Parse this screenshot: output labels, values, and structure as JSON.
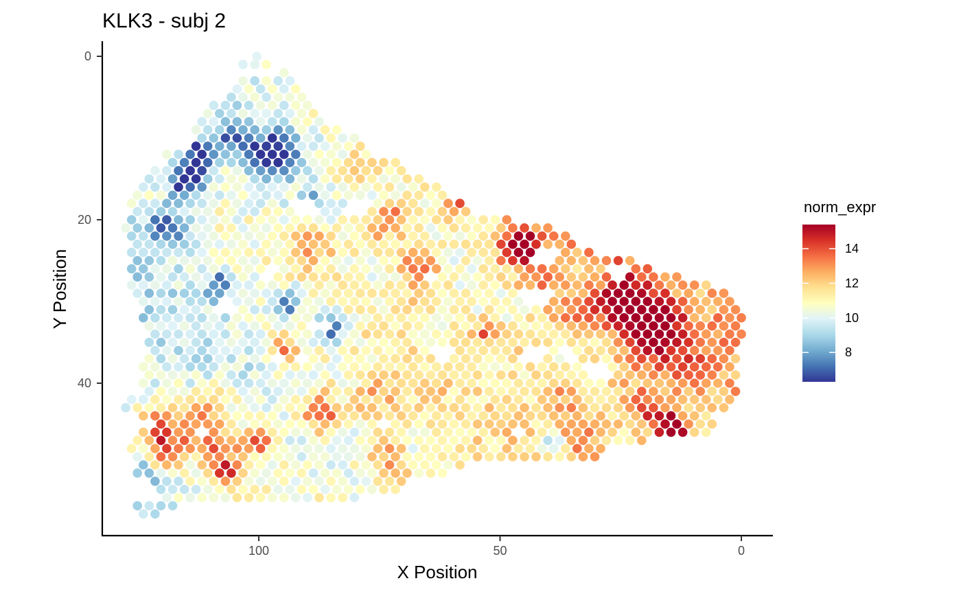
{
  "chart_data": {
    "type": "scatter",
    "title": "KLK3 - subj 2",
    "xlabel": "X Position",
    "ylabel": "Y Position",
    "x_reversed": true,
    "y_reversed": true,
    "xlim": [
      0,
      131
    ],
    "ylim": [
      0,
      57
    ],
    "x_ticks": [
      100,
      50,
      0
    ],
    "y_ticks": [
      0,
      20,
      40
    ],
    "grid": false,
    "legend": {
      "title": "norm_expr",
      "position": "right",
      "range": [
        6.3,
        15.4
      ],
      "ticks": [
        8,
        10,
        12,
        14
      ],
      "colors": [
        "#313695",
        "#4575b4",
        "#74add1",
        "#abd9e9",
        "#e0f3f8",
        "#ffffbf",
        "#fee090",
        "#fdae61",
        "#f46d43",
        "#d73027",
        "#a50026"
      ]
    },
    "spot_grid": {
      "rows": 57,
      "row_spacing": 1,
      "col_spacing": 2.43,
      "row_extents": [
        [
          100.4,
          100.4
        ],
        [
          97.4,
          103.6
        ],
        [
          96.8,
          94.4
        ],
        [
          91.6,
          104.0
        ],
        [
          90.5,
          106.3
        ],
        [
          90.4,
          107.1
        ],
        [
          88.8,
          110.9
        ],
        [
          87.6,
          111.9
        ],
        [
          86.5,
          113.3
        ],
        [
          81.9,
          113.3
        ],
        [
          78.9,
          113.9
        ],
        [
          77.8,
          115.2
        ],
        [
          77.1,
          119.9
        ],
        [
          70.6,
          120.1
        ],
        [
          68.6,
          123.1
        ],
        [
          65.4,
          124.7
        ],
        [
          60.9,
          125.5
        ],
        [
          59.9,
          125.8
        ],
        [
          57.0,
          126.8
        ],
        [
          55.0,
          126.7
        ],
        [
          47.1,
          127.4
        ],
        [
          40.0,
          127.7
        ],
        [
          36.0,
          127.6
        ],
        [
          35.0,
          127.1
        ],
        [
          30.0,
          127.4
        ],
        [
          21.4,
          127.3
        ],
        [
          19.0,
          126.9
        ],
        [
          11.3,
          127.2
        ],
        [
          6.0,
          126.4
        ],
        [
          3.5,
          125.8
        ],
        [
          0.1,
          125.7
        ],
        [
          0.1,
          124.5
        ],
        [
          0.0,
          124.4
        ],
        [
          0.1,
          123.9
        ],
        [
          0.0,
          123.1
        ],
        [
          0.1,
          123.3
        ],
        [
          0.1,
          123.0
        ],
        [
          0.1,
          123.5
        ],
        [
          0.1,
          124.0
        ],
        [
          0.1,
          124.0
        ],
        [
          0.1,
          125.5
        ],
        [
          1.0,
          124.9
        ],
        [
          2.0,
          126.4
        ],
        [
          3.5,
          127.6
        ],
        [
          5.3,
          126.1
        ],
        [
          6.0,
          125.5
        ],
        [
          7.1,
          124.3
        ],
        [
          20.2,
          125.4
        ],
        [
          29.1,
          126.4
        ],
        [
          30.0,
          125.8
        ],
        [
          56.0,
          125.3
        ],
        [
          61.8,
          126.3
        ],
        [
          68.9,
          121.9
        ],
        [
          70.9,
          120.4
        ],
        [
          79.9,
          120.8
        ],
        [
          116.6,
          125.4
        ],
        [
          119.8,
          125.6
        ]
      ],
      "gaps": [
        [
          96.1,
          37.0,
          0.6
        ],
        [
          62.5,
          36.1,
          1.1
        ],
        [
          30.0,
          38.7,
          1.2
        ],
        [
          43.1,
          36.6,
          1.1
        ],
        [
          86.9,
          33.2,
          0.8
        ],
        [
          74.3,
          44.8,
          0.8
        ],
        [
          124.0,
          44.7,
          0.7
        ],
        [
          90.8,
          37.1,
          0.7
        ],
        [
          36.0,
          36.4,
          0.8
        ],
        [
          42.5,
          29.3,
          1.3
        ],
        [
          106.4,
          30.8,
          1.1
        ],
        [
          40.5,
          24.7,
          1.2
        ],
        [
          25.6,
          26.3,
          1.1
        ],
        [
          40.8,
          17.2,
          0.8
        ],
        [
          90.7,
          18.4,
          1.1
        ],
        [
          64.5,
          27.2,
          0.8
        ],
        [
          46.0,
          46.4,
          0.7
        ],
        [
          97.9,
          26.5,
          0.8
        ],
        [
          79.4,
          18.7,
          1.2
        ],
        [
          111.9,
          45.7,
          0.7
        ]
      ],
      "hotspots": [
        [
          30.0,
          20.0,
          2.3,
          6.2
        ],
        [
          17.0,
          35.0,
          3.0,
          6.6
        ],
        [
          25.0,
          30.0,
          3.2,
          4.9
        ],
        [
          33.0,
          32.0,
          2.4,
          4.0
        ],
        [
          14.0,
          45.0,
          2.1,
          3.0
        ],
        [
          112.0,
          46.0,
          2.4,
          4.8
        ],
        [
          120.0,
          47.0,
          3.5,
          4.6
        ],
        [
          88.0,
          42.0,
          1.1,
          4.8
        ],
        [
          67.0,
          25.0,
          3.0,
          4.1
        ],
        [
          72.0,
          20.0,
          3.1,
          3.9
        ],
        [
          65.0,
          40.0,
          0.7,
          3.9
        ],
        [
          95.0,
          36.0,
          3.0,
          3.6
        ],
        [
          45.0,
          35.0,
          0.9,
          4.0
        ],
        [
          40.0,
          30.0,
          1.3,
          4.1
        ],
        [
          42.0,
          27.0,
          1.4,
          3.5
        ],
        [
          37.0,
          41.0,
          1.4,
          4.3
        ],
        [
          120.0,
          50.0,
          3.0,
          3.1
        ],
        [
          46.0,
          23.0,
          3.6,
          3.9
        ],
        [
          20.0,
          32.0,
          2.5,
          6.9
        ],
        [
          24.0,
          27.0,
          1.6,
          4.6
        ],
        [
          3.0,
          33.0,
          1.2,
          3.1
        ],
        [
          110.0,
          43.0,
          1.8,
          5.5
        ],
        [
          87.0,
          44.0,
          3.0,
          4.2
        ],
        [
          22.0,
          42.0,
          1.4,
          5.0
        ],
        [
          76.0,
          42.0,
          1.8,
          4.9
        ],
        [
          32.0,
          19.0,
          1.4,
          5.7
        ],
        [
          89.0,
          23.0,
          2.3,
          5.2
        ],
        [
          53.0,
          34.0,
          2.6,
          3.1
        ],
        [
          59.0,
          18.0,
          2.3,
          3.1
        ],
        [
          10.0,
          39.0,
          1.3,
          4.4
        ],
        [
          121.0,
          44.0,
          1.6,
          3.7
        ],
        [
          3.0,
          27.0,
          2.3,
          3.2
        ],
        [
          77.0,
          22.0,
          1.8,
          3.8
        ],
        [
          100.0,
          47.0,
          3.5,
          3.6
        ],
        [
          66.0,
          29.0,
          1.7,
          5.1
        ],
        [
          14.0,
          46.0,
          3.3,
          2.9
        ],
        [
          45.0,
          24.0,
          1.9,
          5.9
        ],
        [
          108.0,
          48.0,
          2.4,
          3.7
        ],
        [
          79.0,
          14.0,
          1.9,
          4.9
        ],
        [
          69.0,
          48.0,
          1.5,
          5.1
        ],
        [
          34.0,
          46.0,
          1.6,
          5.1
        ],
        [
          26.0,
          17.0,
          1.3,
          4.7
        ],
        [
          107.0,
          51.0,
          3.6,
          3.2
        ],
        [
          18.0,
          44.0,
          2.6,
          3.4
        ],
        [
          73.0,
          50.0,
          2.0,
          5.4
        ]
      ],
      "coldspots": [
        [
          115.0,
          15.0,
          5.3,
          3.7
        ],
        [
          97.0,
          12.0,
          5.1,
          4.6
        ],
        [
          89.0,
          18.0,
          3.1,
          2.1
        ],
        [
          112.0,
          12.0,
          4.0,
          3.1
        ],
        [
          119.0,
          21.0,
          3.6,
          4.2
        ],
        [
          105.0,
          10.0,
          3.4,
          3.2
        ],
        [
          85.0,
          33.0,
          4.1,
          3.2
        ],
        [
          108.0,
          28.0,
          3.3,
          2.8
        ],
        [
          94.0,
          30.0,
          4.5,
          2.6
        ],
        [
          68.0,
          48.0,
          2.5,
          3.1
        ],
        [
          39.0,
          47.0,
          2.6,
          2.9
        ],
        [
          122.0,
          51.0,
          3.1,
          3.5
        ]
      ]
    }
  }
}
